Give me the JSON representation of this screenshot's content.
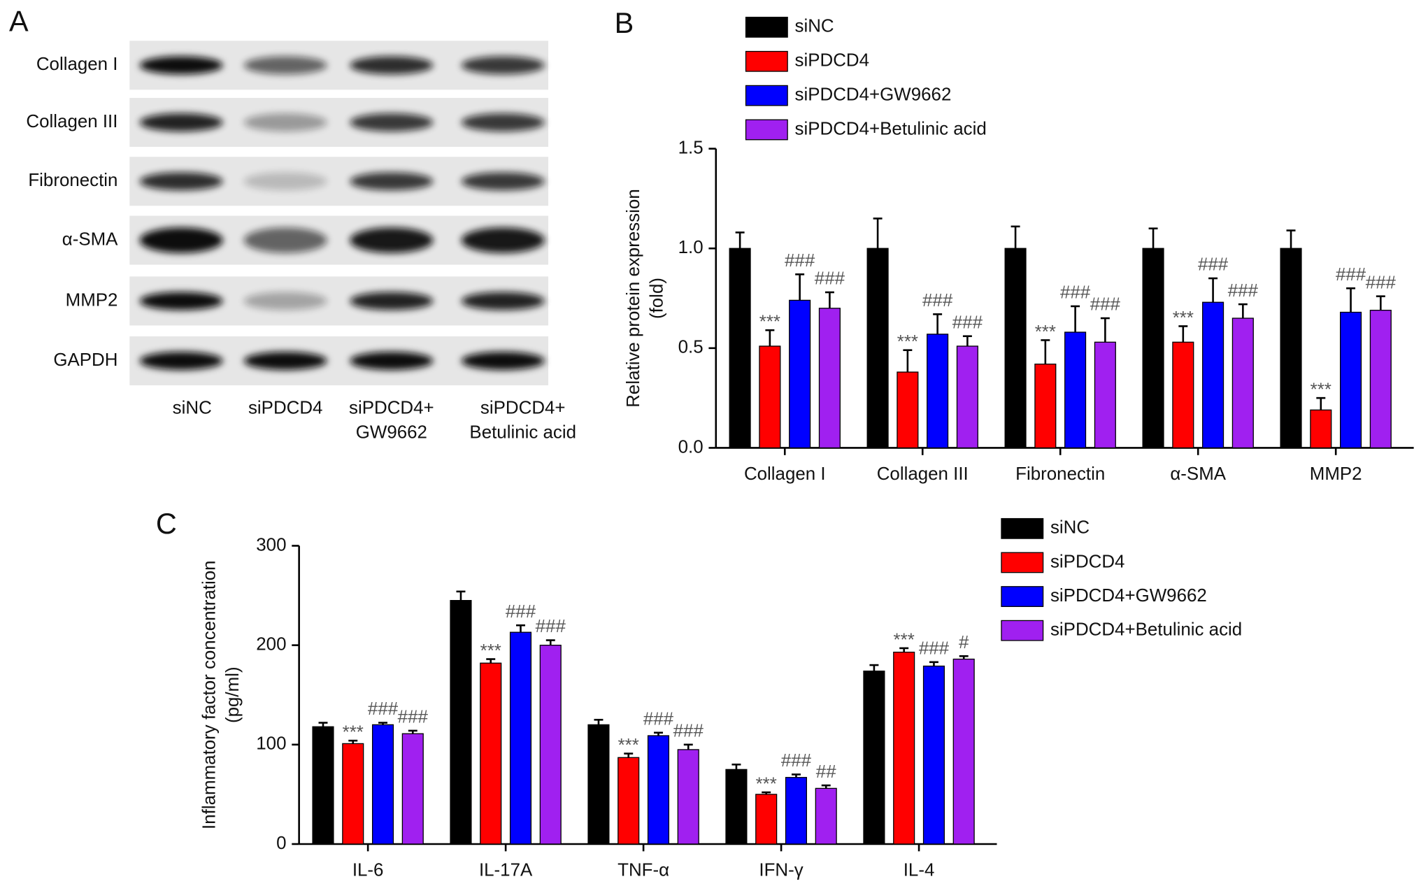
{
  "blot": {
    "panel_label": "A",
    "rows": [
      "Collagen I",
      "Collagen III",
      "Fibronectin",
      "α-SMA",
      "MMP2",
      "GAPDH"
    ],
    "columns": [
      [
        "siNC"
      ],
      [
        "siPDCD4"
      ],
      [
        "siPDCD4+",
        "GW9662"
      ],
      [
        "siPDCD4+",
        "Betulinic acid"
      ]
    ]
  },
  "chart_data": [
    {
      "type": "bar",
      "panel_label": "B",
      "y_label": [
        "Relative protein expression",
        "(fold)"
      ],
      "categories": [
        "Collagen I",
        "Collagen III",
        "Fibronectin",
        "α-SMA",
        "MMP2"
      ],
      "ylim": [
        0,
        1.5
      ],
      "yticks": [
        {
          "value": 0,
          "label": "0.0"
        },
        0.5,
        {
          "value": 1,
          "label": "1.0"
        },
        1.5
      ],
      "legend": "top",
      "series": [
        {
          "name": "siNC",
          "color": "#000000",
          "values": [
            1.0,
            1.0,
            1.0,
            1.0,
            1.0
          ],
          "errors": [
            0.08,
            0.15,
            0.11,
            0.1,
            0.09
          ],
          "significance": [
            null,
            null,
            null,
            null,
            null
          ]
        },
        {
          "name": "siPDCD4",
          "color": "#ff0000",
          "values": [
            0.51,
            0.38,
            0.42,
            0.53,
            0.19
          ],
          "errors": [
            0.08,
            0.11,
            0.12,
            0.08,
            0.06
          ],
          "significance": [
            "***",
            "***",
            "***",
            "***",
            "***"
          ]
        },
        {
          "name": "siPDCD4+GW9662",
          "color": "#0000ff",
          "values": [
            0.74,
            0.57,
            0.58,
            0.73,
            0.68
          ],
          "errors": [
            0.13,
            0.1,
            0.13,
            0.12,
            0.12
          ],
          "significance": [
            "###",
            "###",
            "###",
            "###",
            "###"
          ]
        },
        {
          "name": "siPDCD4+Betulinic acid",
          "color": "#a020f0",
          "values": [
            0.7,
            0.51,
            0.53,
            0.65,
            0.69
          ],
          "errors": [
            0.08,
            0.05,
            0.12,
            0.07,
            0.07
          ],
          "significance": [
            "###",
            "###",
            "###",
            "###",
            "###"
          ]
        }
      ]
    },
    {
      "type": "bar",
      "panel_label": "C",
      "y_label": [
        "Inflammatory factor concentration",
        "(pg/ml)"
      ],
      "categories": [
        "IL-6",
        "IL-17A",
        "TNF-α",
        "IFN-γ",
        "IL-4"
      ],
      "ylim": [
        0,
        300
      ],
      "yticks": [
        0,
        100,
        200,
        300
      ],
      "legend": "right",
      "series": [
        {
          "name": "siNC",
          "color": "#000000",
          "values": [
            118,
            245,
            120,
            75,
            174
          ],
          "errors": [
            4,
            9,
            5,
            5,
            6
          ],
          "significance": [
            null,
            null,
            null,
            null,
            null
          ]
        },
        {
          "name": "siPDCD4",
          "color": "#ff0000",
          "values": [
            101,
            182,
            87,
            50,
            193
          ],
          "errors": [
            3,
            4,
            4,
            2,
            4
          ],
          "significance": [
            "***",
            "***",
            "***",
            "***",
            "***"
          ]
        },
        {
          "name": "siPDCD4+GW9662",
          "color": "#0000ff",
          "values": [
            120,
            213,
            109,
            67,
            179
          ],
          "errors": [
            2,
            7,
            3,
            3,
            4
          ],
          "significance": [
            "###",
            "###",
            "###",
            "###",
            "###"
          ]
        },
        {
          "name": "siPDCD4+Betulinic acid",
          "color": "#a020f0",
          "values": [
            111,
            200,
            95,
            56,
            186
          ],
          "errors": [
            3,
            5,
            5,
            3,
            3
          ],
          "significance": [
            "###",
            "###",
            "###",
            "##",
            "#"
          ]
        }
      ]
    }
  ]
}
